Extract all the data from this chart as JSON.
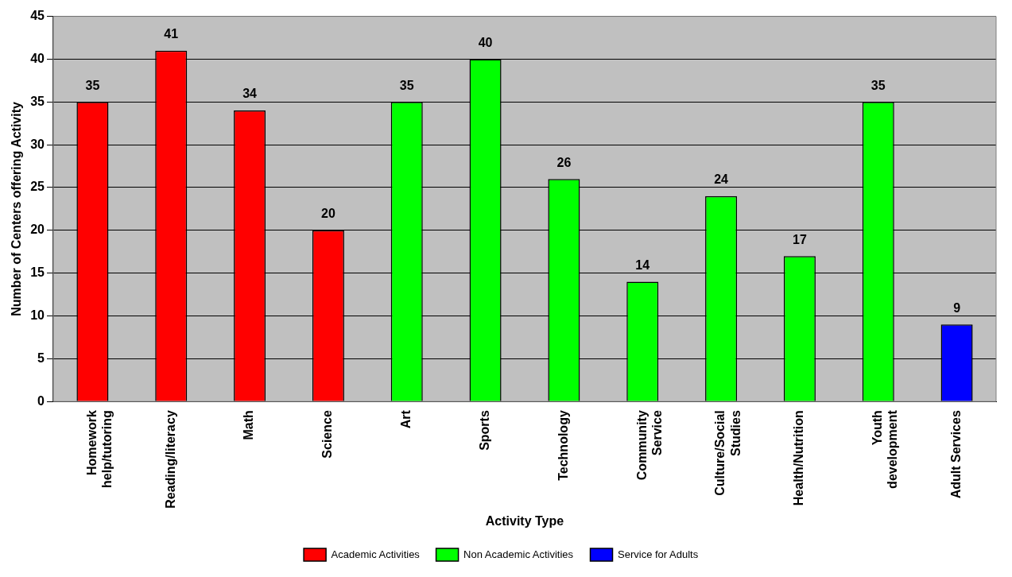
{
  "chart_data": {
    "type": "bar",
    "xlabel": "Activity Type",
    "ylabel": "Number of Centers offering Activity",
    "categories": [
      "Homework help/tutoring",
      "Reading/literacy",
      "Math",
      "Science",
      "Art",
      "Sports",
      "Technology",
      "Community Service",
      "Culture/Social Studies",
      "Health/Nutrition",
      "Youth development",
      "Adult Services"
    ],
    "series": [
      {
        "name": "Academic Activities",
        "color": "#ff0000",
        "values": [
          35,
          41,
          34,
          20,
          null,
          null,
          null,
          null,
          null,
          null,
          null,
          null
        ]
      },
      {
        "name": "Non Academic Activities",
        "color": "#00ff00",
        "values": [
          null,
          null,
          null,
          null,
          35,
          40,
          26,
          14,
          24,
          17,
          35,
          null
        ]
      },
      {
        "name": "Service for Adults",
        "color": "#0000ff",
        "values": [
          null,
          null,
          null,
          null,
          null,
          null,
          null,
          null,
          null,
          null,
          null,
          9
        ]
      }
    ],
    "ylim": [
      0,
      45
    ],
    "yticks": [
      0,
      5,
      10,
      15,
      20,
      25,
      30,
      35,
      40,
      45
    ],
    "grid": "y",
    "legend": "bottom",
    "data_labels": true
  }
}
